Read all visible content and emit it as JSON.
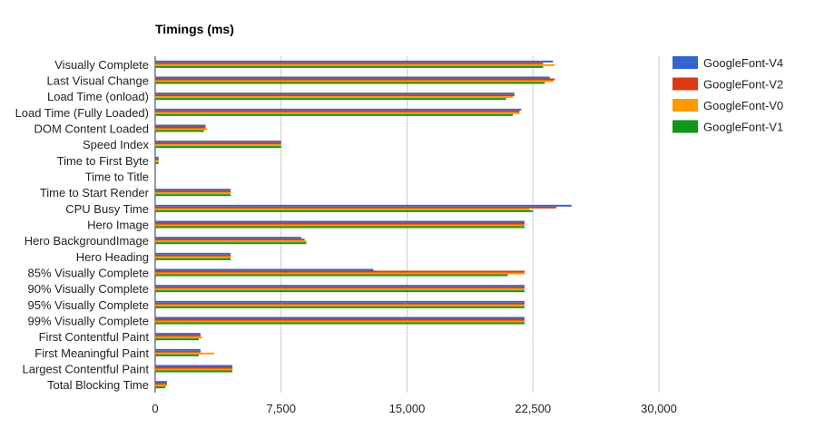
{
  "chart_data": {
    "type": "bar",
    "orientation": "horizontal",
    "title": "Timings (ms)",
    "xlabel": "",
    "ylabel": "",
    "xlim": [
      0,
      30000
    ],
    "x_ticks": [
      0,
      7500,
      15000,
      22500,
      30000
    ],
    "x_tick_labels": [
      "0",
      "7,500",
      "15,000",
      "22,500",
      "30,000"
    ],
    "grid": true,
    "legend_position": "right",
    "categories": [
      "Visually Complete",
      "Last Visual Change",
      "Load Time (onload)",
      "Load Time (Fully Loaded)",
      "DOM Content Loaded",
      "Speed Index",
      "Time to First Byte",
      "Time to Title",
      "Time to Start Render",
      "CPU Busy Time",
      "Hero Image",
      "Hero BackgroundImage",
      "Hero Heading",
      "85% Visually Complete",
      "90% Visually Complete",
      "95% Visually Complete",
      "99% Visually Complete",
      "First Contentful Paint",
      "First Meaningful Paint",
      "Largest Contentful Paint",
      "Total Blocking Time"
    ],
    "series": [
      {
        "name": "GoogleFont-V4",
        "color": "#3366cc",
        "values": [
          23700,
          23500,
          21400,
          21800,
          3000,
          7500,
          200,
          0,
          4500,
          24800,
          22000,
          8700,
          4500,
          13000,
          22000,
          22000,
          22000,
          2700,
          2700,
          4600,
          700
        ]
      },
      {
        "name": "GoogleFont-V2",
        "color": "#dc3912",
        "values": [
          23100,
          23800,
          21400,
          21700,
          3000,
          7500,
          200,
          0,
          4500,
          23900,
          22000,
          8900,
          4500,
          22000,
          22000,
          22000,
          22000,
          2700,
          2700,
          4600,
          700
        ]
      },
      {
        "name": "GoogleFont-V0",
        "color": "#ff9900",
        "values": [
          23800,
          23700,
          21300,
          21700,
          3100,
          7500,
          200,
          0,
          4500,
          22300,
          22000,
          9000,
          4500,
          22000,
          22000,
          22000,
          22000,
          2800,
          3500,
          4600,
          700
        ]
      },
      {
        "name": "GoogleFont-V1",
        "color": "#109618",
        "values": [
          23100,
          23200,
          20900,
          21300,
          2900,
          7500,
          200,
          0,
          4500,
          22500,
          22000,
          9000,
          4500,
          21000,
          22000,
          22000,
          22000,
          2600,
          2600,
          4600,
          600
        ]
      }
    ]
  }
}
